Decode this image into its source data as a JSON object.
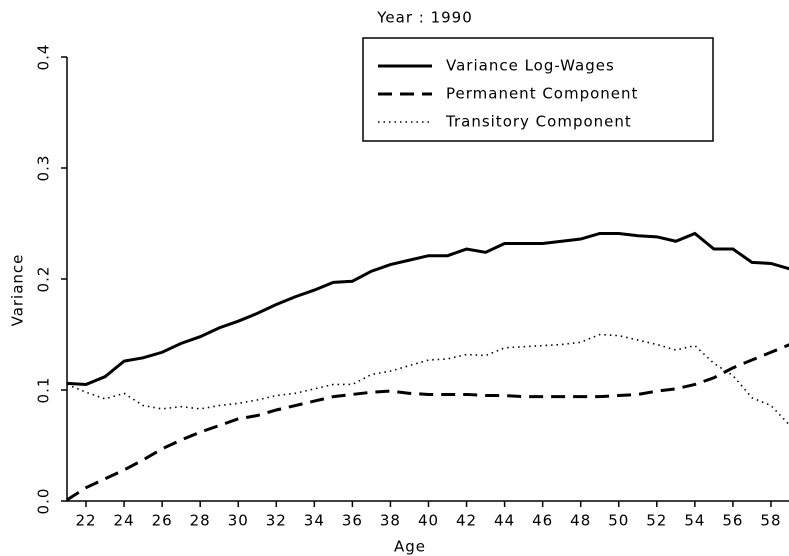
{
  "chart_data": {
    "type": "line",
    "title": "Year : 1990",
    "x_label": "Age",
    "y_label": "Variance",
    "x": [
      21,
      22,
      23,
      24,
      25,
      26,
      27,
      28,
      29,
      30,
      31,
      32,
      33,
      34,
      35,
      36,
      37,
      38,
      39,
      40,
      41,
      42,
      43,
      44,
      45,
      46,
      47,
      48,
      49,
      50,
      51,
      52,
      53,
      54,
      55,
      56,
      57,
      58,
      59
    ],
    "series": [
      {
        "name": "Variance Log-Wages",
        "color": "#000000",
        "style": "solid",
        "values": [
          0.106,
          0.105,
          0.112,
          0.126,
          0.129,
          0.134,
          0.142,
          0.148,
          0.156,
          0.162,
          0.169,
          0.177,
          0.184,
          0.19,
          0.197,
          0.198,
          0.207,
          0.213,
          0.217,
          0.221,
          0.221,
          0.227,
          0.224,
          0.232,
          0.232,
          0.232,
          0.234,
          0.236,
          0.241,
          0.241,
          0.239,
          0.238,
          0.234,
          0.241,
          0.227,
          0.227,
          0.215,
          0.214,
          0.209
        ]
      },
      {
        "name": "Permanent Component",
        "color": "#000000",
        "style": "dashed",
        "values": [
          0.001,
          0.012,
          0.02,
          0.028,
          0.037,
          0.047,
          0.055,
          0.062,
          0.068,
          0.074,
          0.077,
          0.082,
          0.086,
          0.09,
          0.094,
          0.096,
          0.098,
          0.099,
          0.097,
          0.096,
          0.096,
          0.096,
          0.095,
          0.095,
          0.094,
          0.094,
          0.094,
          0.094,
          0.094,
          0.095,
          0.096,
          0.099,
          0.101,
          0.105,
          0.111,
          0.12,
          0.127,
          0.134,
          0.141
        ]
      },
      {
        "name": "Transitory Component",
        "color": "#000000",
        "style": "dotted",
        "values": [
          0.105,
          0.098,
          0.092,
          0.097,
          0.086,
          0.083,
          0.085,
          0.083,
          0.086,
          0.088,
          0.091,
          0.095,
          0.097,
          0.101,
          0.105,
          0.105,
          0.114,
          0.117,
          0.122,
          0.127,
          0.128,
          0.132,
          0.131,
          0.138,
          0.139,
          0.14,
          0.141,
          0.143,
          0.15,
          0.149,
          0.145,
          0.141,
          0.136,
          0.14,
          0.124,
          0.113,
          0.093,
          0.086,
          0.068
        ]
      }
    ],
    "xlim": [
      21,
      59
    ],
    "xticks": [
      22,
      24,
      26,
      28,
      30,
      32,
      34,
      36,
      38,
      40,
      42,
      44,
      46,
      48,
      50,
      52,
      54,
      56,
      58
    ],
    "ylim": [
      0,
      0.4
    ],
    "yticks": [
      {
        "value": 0,
        "label": "0.0"
      },
      0.1,
      0.2,
      0.3,
      0.4
    ],
    "legend": "top-right"
  }
}
